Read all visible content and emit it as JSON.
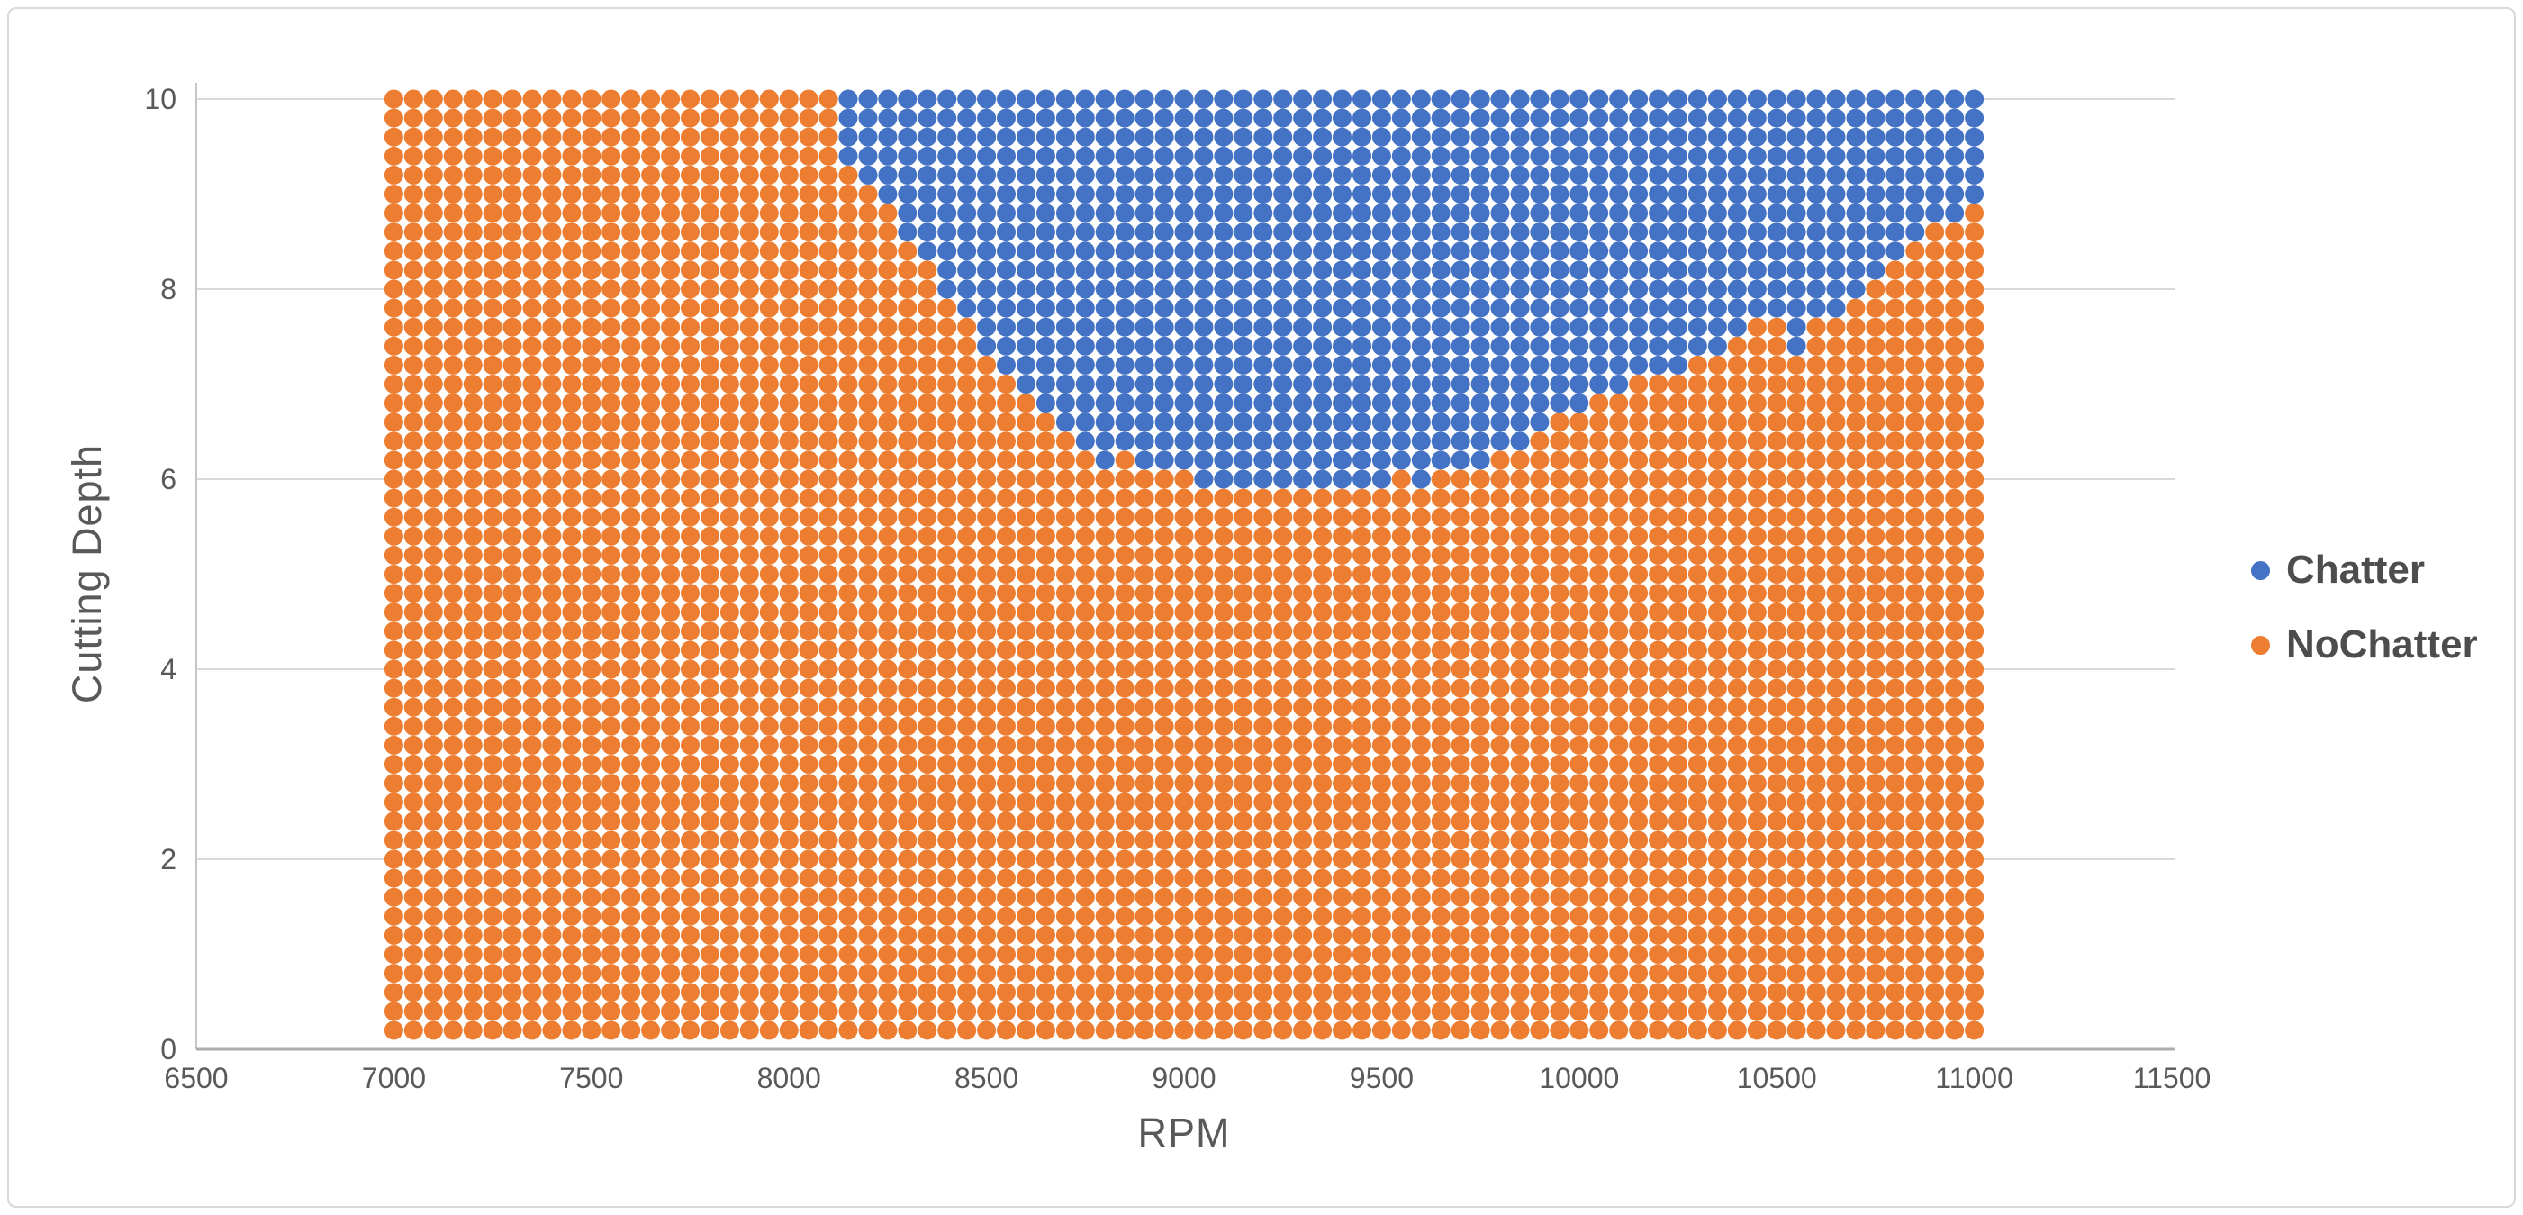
{
  "chart_data": {
    "type": "scatter",
    "title": "",
    "xlabel": "RPM",
    "ylabel": "Cutting Depth",
    "xlim": [
      6500,
      11500
    ],
    "ylim": [
      0,
      10
    ],
    "x_ticks": [
      6500,
      7000,
      7500,
      8000,
      8500,
      9000,
      9500,
      10000,
      10500,
      11000,
      11500
    ],
    "y_ticks": [
      0,
      2,
      4,
      6,
      8,
      10
    ],
    "grid": "horizontal",
    "legend_position": "right",
    "series": [
      {
        "name": "Chatter",
        "color": "#4472C4"
      },
      {
        "name": "NoChatter",
        "color": "#ED7D31"
      }
    ],
    "grid_points": {
      "description": "Dense lattice of classified operating points; every lattice point is plotted as a filled dot.",
      "rpm_start": 7000,
      "rpm_end": 11000,
      "rpm_step": 50,
      "depth_start": 0.2,
      "depth_end": 10.0,
      "depth_step": 0.2
    },
    "chatter_boundary": {
      "description": "Per-RPM minimum Cutting Depth classified as Chatter. Points at or above threshold are Chatter (blue); all other lattice points are NoChatter (orange). RPM columns below 8150 contain no Chatter.",
      "thresholds": [
        [
          8150,
          9.4
        ],
        [
          8200,
          9.2
        ],
        [
          8250,
          9.0
        ],
        [
          8300,
          8.6
        ],
        [
          8350,
          8.4
        ],
        [
          8400,
          8.0
        ],
        [
          8450,
          7.8
        ],
        [
          8500,
          7.4
        ],
        [
          8550,
          7.2
        ],
        [
          8600,
          7.0
        ],
        [
          8650,
          6.8
        ],
        [
          8700,
          6.6
        ],
        [
          8750,
          6.4
        ],
        [
          8800,
          6.2
        ],
        [
          8850,
          6.2
        ],
        [
          8900,
          6.2
        ],
        [
          8950,
          6.2
        ],
        [
          9000,
          6.2
        ],
        [
          9050,
          6.0
        ],
        [
          9100,
          6.0
        ],
        [
          9150,
          6.0
        ],
        [
          9200,
          6.0
        ],
        [
          9250,
          6.0
        ],
        [
          9300,
          6.0
        ],
        [
          9350,
          6.0
        ],
        [
          9400,
          6.0
        ],
        [
          9450,
          6.0
        ],
        [
          9500,
          6.0
        ],
        [
          9550,
          6.0
        ],
        [
          9600,
          6.0
        ],
        [
          9650,
          6.2
        ],
        [
          9700,
          6.2
        ],
        [
          9750,
          6.2
        ],
        [
          9800,
          6.4
        ],
        [
          9850,
          6.4
        ],
        [
          9900,
          6.6
        ],
        [
          9950,
          6.8
        ],
        [
          10000,
          6.8
        ],
        [
          10050,
          7.0
        ],
        [
          10100,
          7.0
        ],
        [
          10150,
          7.2
        ],
        [
          10200,
          7.2
        ],
        [
          10250,
          7.2
        ],
        [
          10300,
          7.4
        ],
        [
          10350,
          7.4
        ],
        [
          10400,
          7.6
        ],
        [
          10450,
          7.8
        ],
        [
          10500,
          7.8
        ],
        [
          10550,
          7.4
        ],
        [
          10600,
          7.8
        ],
        [
          10650,
          7.8
        ],
        [
          10700,
          8.0
        ],
        [
          10750,
          8.2
        ],
        [
          10800,
          8.4
        ],
        [
          10850,
          8.6
        ],
        [
          10900,
          8.8
        ],
        [
          10950,
          8.8
        ],
        [
          11000,
          9.0
        ]
      ]
    },
    "noise_points": [
      {
        "rpm": 8850,
        "depth": 6.2,
        "label": "NoChatter"
      },
      {
        "rpm": 9550,
        "depth": 6.0,
        "label": "NoChatter"
      }
    ]
  },
  "legend": {
    "items": [
      {
        "label": "Chatter",
        "color": "#4472C4"
      },
      {
        "label": "NoChatter",
        "color": "#ED7D31"
      }
    ]
  },
  "colors": {
    "chatter": "#4472C4",
    "no_chatter": "#ED7D31",
    "gridline": "#D9D9D9",
    "axis_line": "#ACACAC",
    "y_axis_line": "#C6C6C6",
    "tick_text": "#595959",
    "axis_title_text": "#595959",
    "legend_text": "#4d4d4d",
    "frame_border": "#D9D9D9",
    "background": "#FFFFFF"
  }
}
